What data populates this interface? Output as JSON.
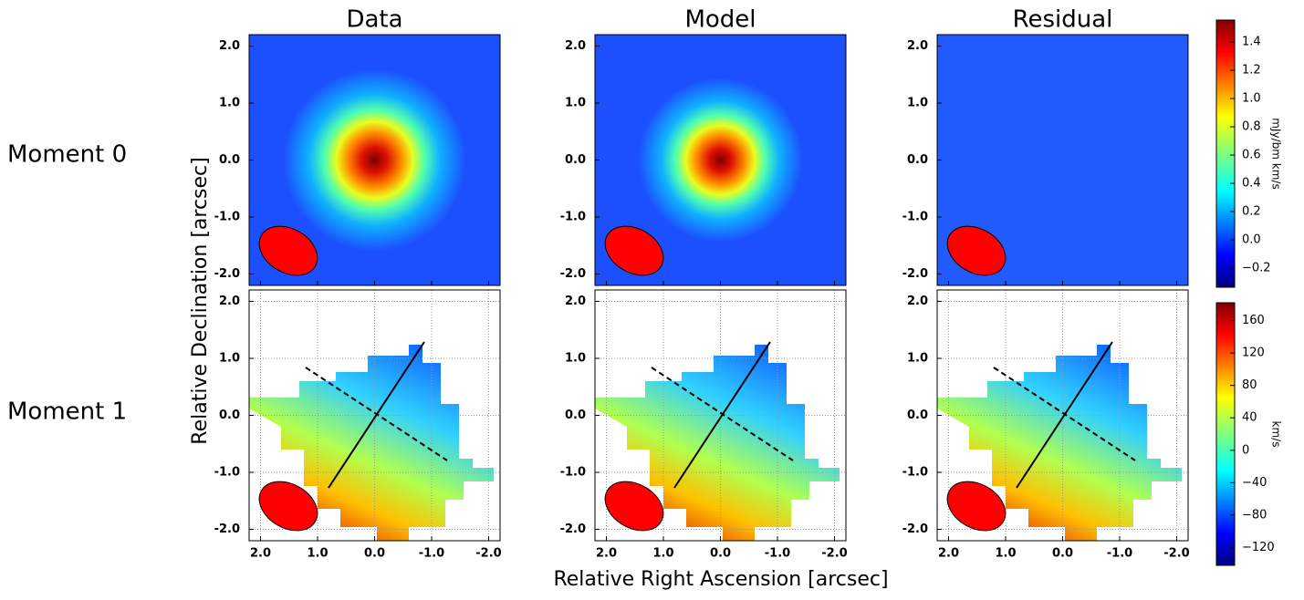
{
  "chart_data": {
    "type": "heatmap",
    "column_titles": [
      "Data",
      "Model",
      "Residual"
    ],
    "row_labels": [
      "Moment 0",
      "Moment 1"
    ],
    "x_label": "Relative Right Ascension [arcsec]",
    "y_label": "Relative Declination [arcsec]",
    "xlim": [
      2.2,
      -2.2
    ],
    "ylim": [
      -2.2,
      2.2
    ],
    "xticks": [
      {
        "value": 2,
        "label": "2.0"
      },
      {
        "value": 1,
        "label": "1.0"
      },
      {
        "value": 0,
        "label": "0.0"
      },
      {
        "value": -1,
        "label": "-1.0"
      },
      {
        "value": -2,
        "label": "-2.0"
      }
    ],
    "yticks": [
      {
        "value": 2,
        "label": "2.0"
      },
      {
        "value": 1,
        "label": "1.0"
      },
      {
        "value": 0,
        "label": "0.0"
      },
      {
        "value": -1,
        "label": "-1.0"
      },
      {
        "value": -2,
        "label": "-2.0"
      }
    ],
    "grid_row": 1,
    "colorbars": [
      {
        "label": "mJy/bm km/s",
        "lim": [
          -0.335,
          1.555
        ],
        "ticks": [
          {
            "value": -0.2,
            "label": "−0.2"
          },
          {
            "value": 0,
            "label": "0.0"
          },
          {
            "value": 0.2,
            "label": "0.2"
          },
          {
            "value": 0.4,
            "label": "0.4"
          },
          {
            "value": 0.6,
            "label": "0.6"
          },
          {
            "value": 0.8,
            "label": "0.8"
          },
          {
            "value": 1,
            "label": "1.0"
          },
          {
            "value": 1.2,
            "label": "1.2"
          },
          {
            "value": 1.4,
            "label": "1.4"
          }
        ]
      },
      {
        "label": "km/s",
        "lim": [
          -142,
          182
        ],
        "ticks": [
          {
            "value": -120,
            "label": "−120"
          },
          {
            "value": -80,
            "label": "−80"
          },
          {
            "value": -40,
            "label": "−40"
          },
          0,
          40,
          80,
          120,
          160
        ]
      }
    ]
  }
}
